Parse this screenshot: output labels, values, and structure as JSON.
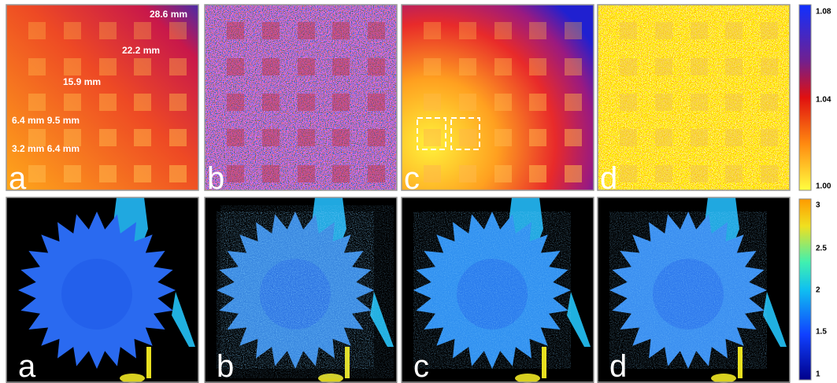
{
  "top_row": {
    "panels": [
      {
        "label": "a",
        "annotations": [
          "28.6 mm",
          "22.2 mm",
          "15.9 mm",
          "6.4 mm 9.5 mm",
          "3.2 mm 6.4 mm"
        ]
      },
      {
        "label": "b"
      },
      {
        "label": "c"
      },
      {
        "label": "d"
      }
    ],
    "colorbar": {
      "ticks": [
        "1.08",
        "1.04",
        "1.00"
      ]
    }
  },
  "bottom_row": {
    "panels": [
      {
        "label": "a"
      },
      {
        "label": "b"
      },
      {
        "label": "c"
      },
      {
        "label": "d"
      }
    ],
    "colorbar": {
      "ticks": [
        "3",
        "2.5",
        "2",
        "1.5",
        "1"
      ]
    }
  }
}
